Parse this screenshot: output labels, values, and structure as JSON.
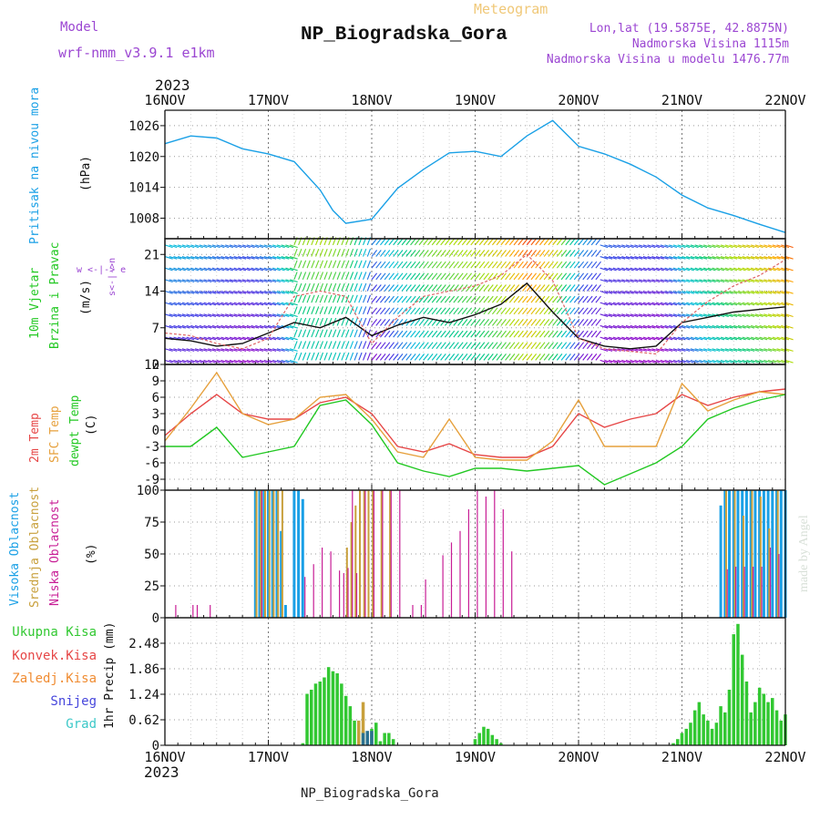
{
  "header": {
    "model_label": "Model",
    "model_name": "wrf-nmm_v3.9.1 e1km",
    "meteogram_label": "Meteogram",
    "station": "NP_Biogradska_Gora",
    "lonlat": "Lon,lat (19.5875E, 42.8875N)",
    "altitude": "Nadmorska Visina 1115m",
    "model_altitude": "Nadmorska Visina u modelu 1476.77m",
    "footer_station": "NP_Biogradska_Gora",
    "credit": "made by Angel",
    "year": "2023",
    "days": [
      "16NOV",
      "17NOV",
      "18NOV",
      "19NOV",
      "20NOV",
      "21NOV",
      "22NOV"
    ]
  },
  "colors": {
    "pressure": "#1aa0e6",
    "temp2m": "#e64646",
    "sfc": "#e6a03c",
    "dewpt": "#22c822",
    "high_cloud": "#1aa0e6",
    "mid_cloud": "#c8a03c",
    "low_cloud": "#c81e96",
    "precip": "#32c832",
    "convective": "#e64646",
    "freezing": "#f08c32",
    "snow": "#4646dc",
    "graupel": "#3cc8c8",
    "title_purple": "#9b46d2",
    "title_orange": "#f0c878"
  },
  "panels": {
    "pressure": {
      "label": "Pritisak na nivou mora",
      "unit": "(hPa)",
      "ticks": [
        "1008",
        "1014",
        "1020",
        "1026"
      ]
    },
    "wind": {
      "label1": "10m Vjetar",
      "label2": "Brzina i Pravac",
      "unit": "(m/s)",
      "ticks": [
        "0",
        "7",
        "14",
        "21"
      ],
      "compass": "w <-|-> e",
      "compass_v": "s<-|->n"
    },
    "temp": {
      "label1": "2m Temp",
      "label2": "SFC Temp",
      "label3": "dewpt Temp",
      "unit": "(C)",
      "ticks": [
        "-9",
        "-6",
        "-3",
        "0",
        "3",
        "6",
        "9",
        "12"
      ]
    },
    "cloud": {
      "label1": "Visoka Oblacnost",
      "label2": "Srednja Oblacnost",
      "label3": "Niska Oblacnost",
      "unit": "(%)",
      "ticks": [
        "0",
        "25",
        "50",
        "75",
        "100"
      ]
    },
    "precip": {
      "legend": [
        "Ukupna Kisa",
        "Konvek.Kisa",
        "Zaledj.Kisa",
        "Snijeg",
        "Grad"
      ],
      "unit": "1hr Precip (mm)",
      "ticks": [
        "0",
        "0.62",
        "1.24",
        "1.86",
        "2.48"
      ]
    }
  },
  "chart_data": [
    {
      "type": "line",
      "panel": "pressure",
      "x_unit": "hours since 16NOV 00Z",
      "ylim": [
        1004,
        1029
      ],
      "series": [
        {
          "name": "Pritisak na nivou mora",
          "x": [
            0,
            6,
            12,
            18,
            24,
            30,
            36,
            39,
            42,
            48,
            54,
            60,
            66,
            72,
            78,
            84,
            90,
            96,
            102,
            108,
            114,
            120,
            126,
            132,
            138,
            144
          ],
          "values": [
            1022.5,
            1024,
            1023.6,
            1021.5,
            1020.5,
            1019,
            1013.5,
            1009.5,
            1007,
            1007.8,
            1013.8,
            1017.5,
            1020.7,
            1021,
            1020,
            1024,
            1027,
            1022,
            1020.5,
            1018.5,
            1016,
            1012.5,
            1010,
            1008.5,
            1006.8,
            1005.2
          ]
        }
      ]
    },
    {
      "type": "line",
      "panel": "wind",
      "ylim": [
        0,
        24
      ],
      "series": [
        {
          "name": "",
          "x": [
            0,
            6,
            12,
            18,
            24,
            30,
            36,
            42,
            48,
            54,
            60,
            66,
            72,
            78,
            84,
            90,
            96,
            102,
            108,
            114,
            120,
            126,
            132,
            138,
            144
          ],
          "values": [
            5,
            4.5,
            3.5,
            4,
            6,
            8,
            7,
            9,
            5.5,
            7.5,
            9,
            8,
            9.5,
            11.5,
            15.5,
            10,
            5,
            3.5,
            3,
            3.5,
            8,
            9,
            10,
            10.5,
            11
          ]
        },
        {
          "name": "",
          "x": [
            0,
            6,
            12,
            18,
            24,
            30,
            36,
            42,
            48,
            54,
            60,
            66,
            72,
            78,
            84,
            90,
            96,
            102,
            108,
            114,
            120,
            126,
            132,
            138,
            144
          ],
          "values": [
            6,
            5.5,
            4,
            3,
            5,
            13,
            14,
            13,
            4,
            9,
            13,
            14,
            15,
            17,
            21,
            16,
            5,
            3,
            2.5,
            2,
            8,
            12,
            15,
            17,
            20
          ]
        }
      ]
    },
    {
      "type": "line",
      "panel": "temp",
      "ylim": [
        -11,
        12
      ],
      "series": [
        {
          "name": "2m Temp",
          "x": [
            0,
            6,
            12,
            18,
            24,
            30,
            36,
            42,
            48,
            54,
            60,
            66,
            72,
            78,
            84,
            90,
            96,
            102,
            108,
            114,
            120,
            126,
            132,
            138,
            144
          ],
          "values": [
            -1,
            3,
            6.5,
            3,
            2,
            2,
            5,
            6,
            3,
            -3,
            -4,
            -2.5,
            -4.5,
            -5,
            -5,
            -3,
            3,
            0.5,
            2,
            3,
            6.5,
            4.5,
            6,
            7,
            7.5
          ]
        },
        {
          "name": "SFC Temp",
          "x": [
            0,
            6,
            12,
            18,
            24,
            30,
            36,
            42,
            48,
            54,
            60,
            66,
            72,
            78,
            84,
            90,
            96,
            102,
            108,
            114,
            120,
            126,
            132,
            138,
            144
          ],
          "values": [
            -2,
            4,
            10.5,
            3,
            1,
            2,
            6,
            6.5,
            2,
            -4,
            -5,
            2,
            -5,
            -5.5,
            -5.5,
            -2,
            5.5,
            -3,
            -3,
            -3,
            8.5,
            3.5,
            5.5,
            7,
            6.5
          ]
        },
        {
          "name": "dewpt Temp",
          "x": [
            0,
            6,
            12,
            18,
            24,
            30,
            36,
            42,
            48,
            54,
            60,
            66,
            72,
            78,
            84,
            90,
            96,
            102,
            108,
            114,
            120,
            126,
            132,
            138,
            144
          ],
          "values": [
            -3,
            -3,
            0.5,
            -5,
            -4,
            -3,
            4.5,
            5.5,
            1,
            -6,
            -7.5,
            -8.5,
            -7,
            -7,
            -7.5,
            -7,
            -6.5,
            -10,
            -8,
            -6,
            -3,
            2,
            4,
            5.5,
            6.5
          ]
        }
      ]
    },
    {
      "type": "bar",
      "panel": "cloud",
      "ylim": [
        0,
        100
      ],
      "series": [
        {
          "name": "Visoka Oblacnost",
          "x": [
            21,
            22,
            23,
            24,
            25,
            26,
            27,
            28,
            30,
            31,
            32,
            129,
            130,
            131,
            132,
            133,
            134,
            135,
            136,
            137,
            138,
            139,
            140,
            141,
            142,
            143,
            144
          ],
          "values": [
            100,
            100,
            100,
            100,
            100,
            100,
            68,
            10,
            100,
            100,
            93,
            88,
            100,
            100,
            100,
            100,
            100,
            100,
            100,
            100,
            100,
            100,
            100,
            100,
            100,
            100,
            100
          ]
        },
        {
          "name": "Srednja Oblacnost",
          "x": [
            21,
            22,
            23,
            24,
            25,
            26,
            27,
            42,
            43,
            44,
            45,
            46,
            47,
            48,
            50,
            52,
            130,
            132,
            134,
            136,
            138,
            140,
            142
          ],
          "values": [
            100,
            100,
            100,
            100,
            100,
            100,
            100,
            55,
            75,
            88,
            100,
            100,
            100,
            100,
            100,
            100,
            100,
            100,
            80,
            100,
            95,
            70,
            100
          ]
        },
        {
          "name": "Niska Oblacnost",
          "x": [
            2,
            6,
            7,
            10,
            22,
            32,
            34,
            36,
            38,
            40,
            41,
            42,
            43,
            44,
            46,
            48,
            50,
            52,
            54,
            57,
            59,
            60,
            64,
            66,
            68,
            70,
            72,
            74,
            76,
            78,
            80,
            130,
            132,
            134,
            136,
            138,
            140,
            142
          ],
          "values": [
            10,
            10,
            10,
            10,
            100,
            32,
            42,
            55,
            52,
            37,
            35,
            39,
            100,
            35,
            100,
            100,
            100,
            100,
            100,
            10,
            10,
            30,
            49,
            59,
            68,
            85,
            100,
            95,
            100,
            85,
            52,
            38,
            40,
            40,
            40,
            40,
            55,
            50
          ]
        }
      ]
    },
    {
      "type": "bar",
      "panel": "precip",
      "ylim": [
        0,
        3.1
      ],
      "series": [
        {
          "name": "Ukupna Kisa",
          "x": [
            32,
            33,
            34,
            35,
            36,
            37,
            38,
            39,
            40,
            41,
            42,
            43,
            44,
            45,
            46,
            47,
            48,
            49,
            50,
            51,
            52,
            53,
            54,
            55,
            56,
            57,
            58,
            59,
            60,
            61,
            62,
            63,
            64,
            65,
            66,
            67,
            68,
            69,
            70,
            71,
            72,
            73,
            74,
            75,
            76,
            77,
            78,
            79,
            80,
            81,
            82,
            83,
            84,
            85,
            86,
            87,
            88,
            89,
            90,
            91,
            92,
            93,
            94,
            95,
            96,
            97,
            98,
            99,
            100,
            101,
            102,
            103,
            104,
            105,
            106,
            107,
            108,
            109,
            110,
            111,
            112,
            113,
            114,
            115,
            116,
            117,
            118,
            119,
            120,
            121,
            122,
            123,
            124,
            125,
            126,
            127,
            128,
            129,
            130,
            131,
            132,
            133,
            134,
            135,
            136,
            137,
            138,
            139,
            140,
            141,
            142,
            143,
            144
          ],
          "values": [
            0.05,
            1.25,
            1.35,
            1.5,
            1.55,
            1.65,
            1.9,
            1.8,
            1.75,
            1.5,
            1.2,
            0.95,
            0.6,
            0.4,
            0.35,
            0.2,
            0.4,
            0.55,
            0.1,
            0.3,
            0.3,
            0.15,
            0,
            0,
            0,
            0,
            0,
            0,
            0,
            0,
            0,
            0,
            0,
            0,
            0,
            0,
            0,
            0,
            0,
            0,
            0.15,
            0.3,
            0.45,
            0.4,
            0.25,
            0.15,
            0.05,
            0,
            0,
            0,
            0,
            0,
            0,
            0,
            0,
            0,
            0,
            0,
            0,
            0,
            0,
            0,
            0,
            0,
            0,
            0,
            0,
            0,
            0,
            0,
            0,
            0,
            0,
            0,
            0,
            0,
            0,
            0,
            0,
            0,
            0,
            0,
            0,
            0,
            0,
            0,
            0.05,
            0.15,
            0.3,
            0.4,
            0.55,
            0.85,
            1.05,
            0.75,
            0.6,
            0.4,
            0.55,
            0.95,
            0.8,
            1.35,
            2.7,
            2.95,
            2.2,
            1.55,
            0.8,
            1.05,
            1.4,
            1.25,
            1.05,
            1.15,
            0.85,
            0.6,
            0.75
          ]
        },
        {
          "name": "Zaledj.Kisa",
          "x": [
            45,
            46
          ],
          "values": [
            0.6,
            1.05
          ]
        },
        {
          "name": "Snijeg",
          "x": [
            46,
            47,
            48
          ],
          "values": [
            0.3,
            0.35,
            0.35
          ]
        }
      ]
    }
  ]
}
